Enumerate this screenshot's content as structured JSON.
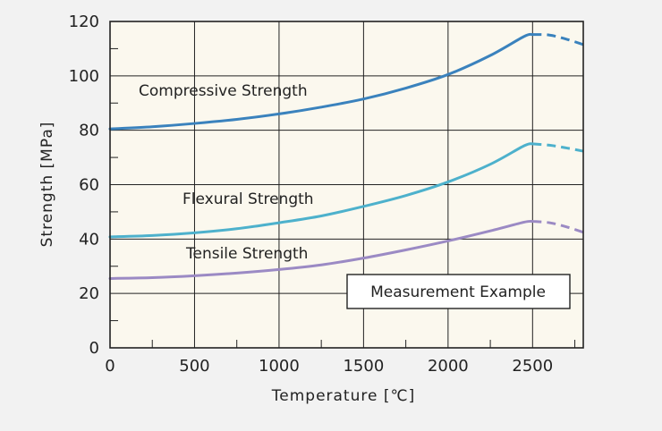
{
  "chart_data": {
    "type": "line",
    "xlabel": "Temperature [℃]",
    "ylabel": "Strength [MPa]",
    "xlim": [
      0,
      2800
    ],
    "ylim": [
      0,
      120
    ],
    "x_ticks": [
      0,
      500,
      1000,
      1500,
      2000,
      2500
    ],
    "y_ticks": [
      0,
      20,
      40,
      60,
      80,
      100,
      120
    ],
    "x_tick_labels": [
      "0",
      "500",
      "1000",
      "1500",
      "2000",
      "2500"
    ],
    "y_tick_labels": [
      "0",
      "20",
      "40",
      "60",
      "80",
      "100",
      "120"
    ],
    "grid": true,
    "annotation": "Measurement Example",
    "series": [
      {
        "name": "Compressive Strength",
        "color": "#3a82bd",
        "solid": [
          [
            0,
            80.5
          ],
          [
            250,
            81.3
          ],
          [
            500,
            82.5
          ],
          [
            750,
            84
          ],
          [
            1000,
            86
          ],
          [
            1250,
            88.5
          ],
          [
            1500,
            91.5
          ],
          [
            1750,
            95.5
          ],
          [
            2000,
            100.5
          ],
          [
            2250,
            107.5
          ],
          [
            2450,
            114.5
          ],
          [
            2500,
            115.2
          ]
        ],
        "dashed": [
          [
            2500,
            115.2
          ],
          [
            2600,
            115
          ],
          [
            2700,
            113.5
          ],
          [
            2800,
            111.5
          ]
        ]
      },
      {
        "name": "Flexural Strength",
        "color": "#4db1cc",
        "solid": [
          [
            0,
            40.8
          ],
          [
            250,
            41.3
          ],
          [
            500,
            42.3
          ],
          [
            750,
            43.8
          ],
          [
            1000,
            46
          ],
          [
            1250,
            48.5
          ],
          [
            1500,
            52
          ],
          [
            1750,
            56
          ],
          [
            2000,
            61
          ],
          [
            2250,
            67.5
          ],
          [
            2450,
            74.3
          ],
          [
            2500,
            75
          ]
        ],
        "dashed": [
          [
            2500,
            75
          ],
          [
            2600,
            74.5
          ],
          [
            2700,
            73.5
          ],
          [
            2800,
            72.3
          ]
        ]
      },
      {
        "name": "Tensile Strength",
        "color": "#9b8ac4",
        "solid": [
          [
            0,
            25.5
          ],
          [
            250,
            25.8
          ],
          [
            500,
            26.5
          ],
          [
            750,
            27.5
          ],
          [
            1000,
            28.8
          ],
          [
            1250,
            30.5
          ],
          [
            1500,
            33
          ],
          [
            1750,
            36
          ],
          [
            2000,
            39.3
          ],
          [
            2250,
            43
          ],
          [
            2450,
            46.2
          ],
          [
            2500,
            46.5
          ]
        ],
        "dashed": [
          [
            2500,
            46.5
          ],
          [
            2600,
            46
          ],
          [
            2700,
            44.5
          ],
          [
            2800,
            42.5
          ]
        ]
      }
    ]
  }
}
